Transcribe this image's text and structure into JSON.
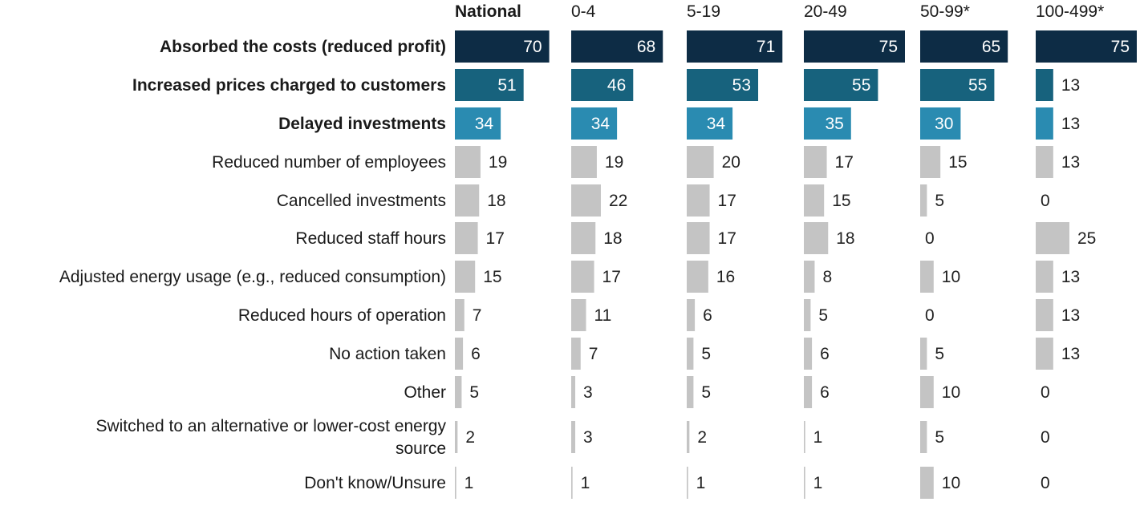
{
  "chart_data": {
    "type": "bar",
    "orientation": "horizontal",
    "layout": "small-multiples",
    "title": "",
    "xlabel": "",
    "ylabel": "",
    "grid": false,
    "value_unit": "%",
    "categories": [
      "Absorbed the costs (reduced profit)",
      "Increased prices charged to customers",
      "Delayed investments",
      "Reduced number of employees",
      "Cancelled investments",
      "Reduced staff hours",
      "Adjusted energy usage (e.g., reduced consumption)",
      "Reduced hours of operation",
      "No action taken",
      "Other",
      "Switched to an alternative or lower-cost energy source",
      "Don't know/Unsure"
    ],
    "highlight_colors": [
      "#0d2c45",
      "#17627d",
      "#2a8bb1"
    ],
    "default_color": "#c4c4c4",
    "label_dark": "#222222",
    "label_light": "#ffffff",
    "series": [
      {
        "name": "National",
        "values": [
          70,
          51,
          34,
          19,
          18,
          17,
          15,
          7,
          6,
          5,
          2,
          1
        ]
      },
      {
        "name": "0-4",
        "values": [
          68,
          46,
          34,
          19,
          22,
          18,
          17,
          11,
          7,
          3,
          3,
          1
        ]
      },
      {
        "name": "5-19",
        "values": [
          71,
          53,
          34,
          20,
          17,
          17,
          16,
          6,
          5,
          5,
          2,
          1
        ]
      },
      {
        "name": "20-49",
        "values": [
          75,
          55,
          35,
          17,
          15,
          18,
          8,
          5,
          6,
          6,
          1,
          1
        ]
      },
      {
        "name": "50-99*",
        "values": [
          65,
          55,
          30,
          15,
          5,
          0,
          10,
          0,
          5,
          10,
          5,
          10
        ]
      },
      {
        "name": "100-499*",
        "values": [
          75,
          13,
          13,
          13,
          0,
          25,
          13,
          13,
          13,
          0,
          0,
          0
        ]
      }
    ]
  }
}
